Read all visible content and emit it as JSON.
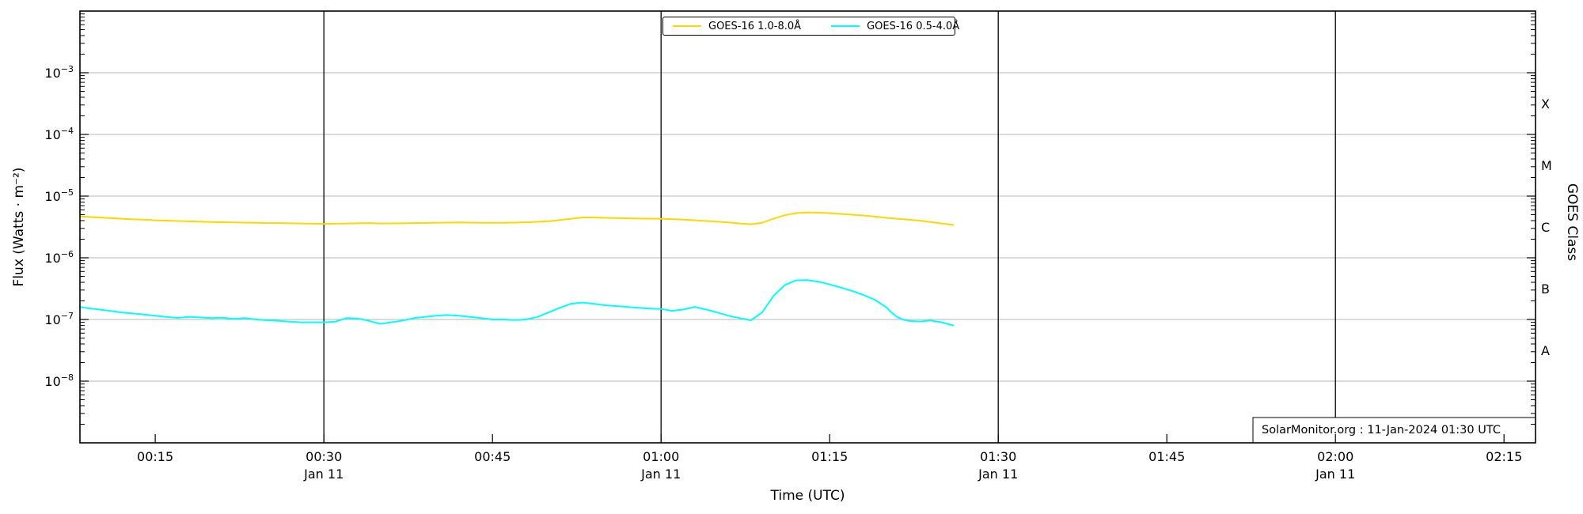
{
  "style": {
    "background": "#ffffff",
    "grid_color": "#b4b4b4",
    "axis_color": "#000000",
    "long_channel_color": "#FFD700",
    "short_channel_color": "#00FFFF"
  },
  "legend": {
    "entries": [
      {
        "label": "GOES-16 1.0-8.0Å",
        "color": "#FFD700"
      },
      {
        "label": "GOES-16 0.5-4.0Å",
        "color": "#00FFFF"
      }
    ]
  },
  "watermark": {
    "text": "SolarMonitor.org : 11-Jan-2024 01:30 UTC"
  },
  "chart_data": {
    "type": "line",
    "xlabel": "Time (UTC)",
    "ylabel": "Flux (Watts · m⁻²)",
    "ylabel_right": "GOES Class",
    "yscale": "log",
    "ylim": [
      1e-09,
      0.01
    ],
    "xlim_minutes_utc": [
      8.3,
      137.8
    ],
    "grid": "horizontal gray line at each labeled decade",
    "legend_position": "upper center",
    "x_ticks": [
      {
        "minutes": 15,
        "label": "00:15"
      },
      {
        "minutes": 30,
        "label": "00:30"
      },
      {
        "minutes": 45,
        "label": "00:45"
      },
      {
        "minutes": 60,
        "label": "01:00"
      },
      {
        "minutes": 75,
        "label": "01:15"
      },
      {
        "minutes": 90,
        "label": "01:30"
      },
      {
        "minutes": 105,
        "label": "01:45"
      },
      {
        "minutes": 120,
        "label": "02:00"
      },
      {
        "minutes": 135,
        "label": "02:15"
      }
    ],
    "date_lines": [
      {
        "minutes": 30,
        "label": "Jan 11"
      },
      {
        "minutes": 60,
        "label": "Jan 11"
      },
      {
        "minutes": 90,
        "label": "Jan 11"
      },
      {
        "minutes": 120,
        "label": "Jan 11"
      }
    ],
    "y_ticks": [
      {
        "value": 0.001,
        "base": "10",
        "exp": "−3"
      },
      {
        "value": 0.0001,
        "base": "10",
        "exp": "−4"
      },
      {
        "value": 1e-05,
        "base": "10",
        "exp": "−5"
      },
      {
        "value": 1e-06,
        "base": "10",
        "exp": "−6"
      },
      {
        "value": 1e-07,
        "base": "10",
        "exp": "−7"
      },
      {
        "value": 1e-08,
        "base": "10",
        "exp": "−8"
      }
    ],
    "goes_classes": [
      {
        "label": "X",
        "value": 0.000316
      },
      {
        "label": "M",
        "value": 3.16e-05
      },
      {
        "label": "C",
        "value": 3.16e-06
      },
      {
        "label": "B",
        "value": 3.16e-07
      },
      {
        "label": "A",
        "value": 3.16e-08
      }
    ],
    "series": [
      {
        "name": "GOES-16 1.0-8.0Å",
        "color": "#FFD700",
        "points": [
          [
            8.3,
            4.7e-06
          ],
          [
            9,
            4.6e-06
          ],
          [
            10,
            4.5e-06
          ],
          [
            11,
            4.4e-06
          ],
          [
            12,
            4.3e-06
          ],
          [
            13,
            4.2e-06
          ],
          [
            14,
            4.15e-06
          ],
          [
            15,
            4.05e-06
          ],
          [
            16,
            4e-06
          ],
          [
            18,
            3.9e-06
          ],
          [
            20,
            3.8e-06
          ],
          [
            22,
            3.75e-06
          ],
          [
            24,
            3.7e-06
          ],
          [
            26,
            3.65e-06
          ],
          [
            28,
            3.6e-06
          ],
          [
            30,
            3.55e-06
          ],
          [
            32,
            3.6e-06
          ],
          [
            34,
            3.65e-06
          ],
          [
            35,
            3.6e-06
          ],
          [
            37,
            3.62e-06
          ],
          [
            39,
            3.68e-06
          ],
          [
            41,
            3.72e-06
          ],
          [
            42,
            3.75e-06
          ],
          [
            44,
            3.7e-06
          ],
          [
            46,
            3.7e-06
          ],
          [
            48,
            3.76e-06
          ],
          [
            50,
            3.9e-06
          ],
          [
            51,
            4.1e-06
          ],
          [
            52,
            4.3e-06
          ],
          [
            53,
            4.5e-06
          ],
          [
            54,
            4.5e-06
          ],
          [
            56,
            4.4e-06
          ],
          [
            58,
            4.32e-06
          ],
          [
            60,
            4.3e-06
          ],
          [
            62,
            4.15e-06
          ],
          [
            64,
            3.95e-06
          ],
          [
            66,
            3.75e-06
          ],
          [
            67,
            3.6e-06
          ],
          [
            68,
            3.5e-06
          ],
          [
            69,
            3.7e-06
          ],
          [
            70,
            4.3e-06
          ],
          [
            71,
            4.9e-06
          ],
          [
            72,
            5.3e-06
          ],
          [
            73,
            5.45e-06
          ],
          [
            74,
            5.4e-06
          ],
          [
            75,
            5.3e-06
          ],
          [
            76,
            5.15e-06
          ],
          [
            77,
            5e-06
          ],
          [
            78,
            4.85e-06
          ],
          [
            79,
            4.65e-06
          ],
          [
            80,
            4.45e-06
          ],
          [
            81,
            4.3e-06
          ],
          [
            82,
            4.15e-06
          ],
          [
            83,
            4e-06
          ],
          [
            84,
            3.8e-06
          ],
          [
            85,
            3.6e-06
          ],
          [
            86,
            3.4e-06
          ]
        ]
      },
      {
        "name": "GOES-16 0.5-4.0Å",
        "color": "#00FFFF",
        "points": [
          [
            8.3,
            1.6e-07
          ],
          [
            9,
            1.52e-07
          ],
          [
            10,
            1.45e-07
          ],
          [
            11,
            1.38e-07
          ],
          [
            12,
            1.3e-07
          ],
          [
            13,
            1.25e-07
          ],
          [
            14,
            1.2e-07
          ],
          [
            15,
            1.15e-07
          ],
          [
            16,
            1.1e-07
          ],
          [
            17,
            1.06e-07
          ],
          [
            18,
            1.1e-07
          ],
          [
            19,
            1.08e-07
          ],
          [
            20,
            1.05e-07
          ],
          [
            21,
            1.07e-07
          ],
          [
            22,
            1.02e-07
          ],
          [
            23,
            1.05e-07
          ],
          [
            24,
            1e-07
          ],
          [
            25,
            9.7e-08
          ],
          [
            26,
            9.5e-08
          ],
          [
            27,
            9.2e-08
          ],
          [
            28,
            9e-08
          ],
          [
            30,
            9e-08
          ],
          [
            31,
            9.2e-08
          ],
          [
            32,
            1.05e-07
          ],
          [
            33,
            1.04e-07
          ],
          [
            34,
            9.5e-08
          ],
          [
            35,
            8.5e-08
          ],
          [
            36,
            9e-08
          ],
          [
            37,
            9.6e-08
          ],
          [
            38,
            1.05e-07
          ],
          [
            39,
            1.1e-07
          ],
          [
            40,
            1.15e-07
          ],
          [
            41,
            1.18e-07
          ],
          [
            42,
            1.15e-07
          ],
          [
            43,
            1.1e-07
          ],
          [
            44,
            1.05e-07
          ],
          [
            45,
            1e-07
          ],
          [
            46,
            1e-07
          ],
          [
            47,
            9.8e-08
          ],
          [
            48,
            1e-07
          ],
          [
            49,
            1.1e-07
          ],
          [
            50,
            1.3e-07
          ],
          [
            51,
            1.55e-07
          ],
          [
            52,
            1.8e-07
          ],
          [
            53,
            1.88e-07
          ],
          [
            54,
            1.8e-07
          ],
          [
            55,
            1.7e-07
          ],
          [
            56,
            1.65e-07
          ],
          [
            57,
            1.6e-07
          ],
          [
            58,
            1.55e-07
          ],
          [
            59,
            1.5e-07
          ],
          [
            60,
            1.48e-07
          ],
          [
            61,
            1.38e-07
          ],
          [
            62,
            1.45e-07
          ],
          [
            63,
            1.6e-07
          ],
          [
            64,
            1.45e-07
          ],
          [
            65,
            1.3e-07
          ],
          [
            66,
            1.15e-07
          ],
          [
            67,
            1.05e-07
          ],
          [
            68,
            9.7e-08
          ],
          [
            69,
            1.3e-07
          ],
          [
            70,
            2.4e-07
          ],
          [
            71,
            3.6e-07
          ],
          [
            72,
            4.3e-07
          ],
          [
            73,
            4.35e-07
          ],
          [
            74,
            4.1e-07
          ],
          [
            75,
            3.7e-07
          ],
          [
            76,
            3.3e-07
          ],
          [
            77,
            2.9e-07
          ],
          [
            78,
            2.5e-07
          ],
          [
            79,
            2.1e-07
          ],
          [
            80,
            1.6e-07
          ],
          [
            80.5,
            1.3e-07
          ],
          [
            81,
            1.1e-07
          ],
          [
            81.5,
            1e-07
          ],
          [
            82,
            9.5e-08
          ],
          [
            83,
            9.3e-08
          ],
          [
            84,
            9.6e-08
          ],
          [
            85,
            9e-08
          ],
          [
            86,
            8e-08
          ]
        ]
      }
    ]
  }
}
